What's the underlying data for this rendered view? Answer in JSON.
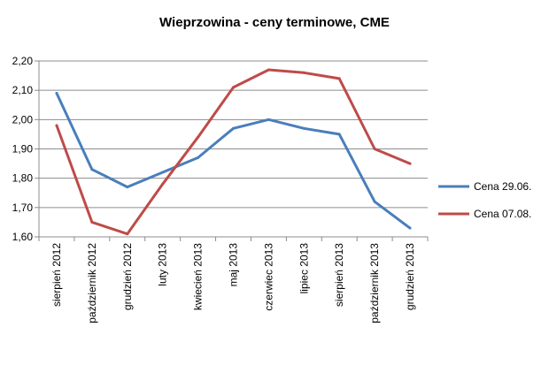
{
  "chart_data": {
    "type": "line",
    "title": "Wieprzowina - ceny terminowe, CME",
    "categories": [
      "sierpień 2012",
      "październik 2012",
      "grudzień 2012",
      "luty 2013",
      "kwiecień 2013",
      "maj 2013",
      "czerwiec 2013",
      "lipiec 2013",
      "sierpień 2013",
      "październik 2013",
      "grudzień 2013"
    ],
    "y_tick_labels": [
      "1,60",
      "1,70",
      "1,80",
      "1,90",
      "2,00",
      "2,10",
      "2,20"
    ],
    "ylim": [
      1.6,
      2.2
    ],
    "grid": true,
    "legend_position": "right",
    "series": [
      {
        "name": "Cena 29.06.",
        "color": "#4a7ebb",
        "values": [
          2.09,
          1.83,
          1.77,
          1.82,
          1.87,
          1.97,
          2.0,
          1.97,
          1.95,
          1.72,
          1.63
        ]
      },
      {
        "name": "Cena 07.08.",
        "color": "#be4b48",
        "values": [
          1.98,
          1.65,
          1.61,
          1.78,
          1.94,
          2.11,
          2.17,
          2.16,
          2.14,
          1.9,
          1.85
        ]
      }
    ]
  }
}
